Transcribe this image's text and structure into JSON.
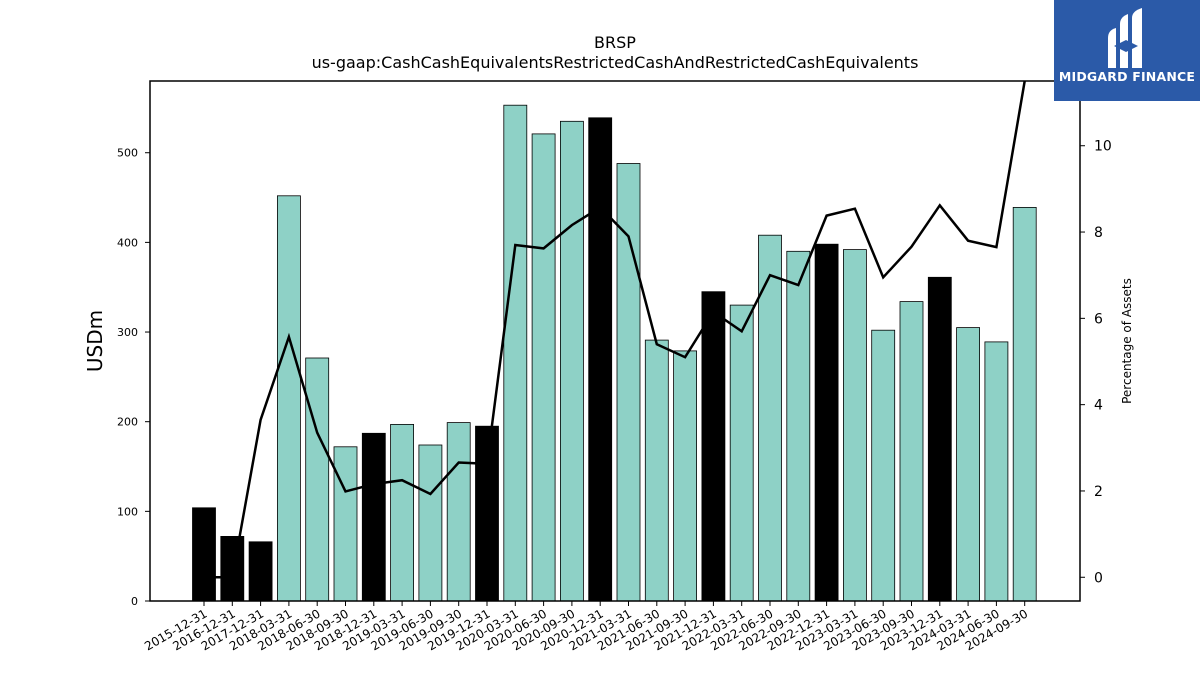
{
  "chart_data": {
    "type": "bar",
    "title": "BRSP",
    "subtitle": "us-gaap:CashCashEquivalentsRestrictedCashAndRestrictedCashEquivalents",
    "ylabel": "USDm",
    "y2label": "Percentage of Assets",
    "ylim": [
      0,
      580
    ],
    "y2lim": [
      -0.55,
      11.5
    ],
    "yticks": [
      "0",
      "100",
      "200",
      "300",
      "400",
      "500"
    ],
    "y2ticks": [
      "0",
      "2",
      "4",
      "6",
      "8",
      "10"
    ],
    "categories": [
      "2015-12-31",
      "2016-12-31",
      "2017-12-31",
      "2018-03-31",
      "2018-06-30",
      "2018-09-30",
      "2018-12-31",
      "2019-03-31",
      "2019-06-30",
      "2019-09-30",
      "2019-12-31",
      "2020-03-31",
      "2020-06-30",
      "2020-09-30",
      "2020-12-31",
      "2021-03-31",
      "2021-06-30",
      "2021-09-30",
      "2021-12-31",
      "2022-03-31",
      "2022-06-30",
      "2022-09-30",
      "2022-12-31",
      "2023-03-31",
      "2023-06-30",
      "2023-09-30",
      "2023-12-31",
      "2024-03-31",
      "2024-06-30",
      "2024-09-30"
    ],
    "series": [
      {
        "kind": "bar",
        "values": [
          104,
          72,
          66,
          452,
          271,
          172,
          187,
          197,
          174,
          199,
          195,
          553,
          521,
          535,
          539,
          488,
          291,
          279,
          345,
          330,
          408,
          390,
          398,
          392,
          302,
          334,
          361,
          305,
          289,
          439
        ],
        "highlight": [
          true,
          true,
          true,
          false,
          false,
          false,
          true,
          false,
          false,
          false,
          true,
          false,
          false,
          false,
          true,
          false,
          false,
          false,
          true,
          false,
          false,
          false,
          true,
          false,
          false,
          false,
          true,
          false,
          false,
          false
        ]
      },
      {
        "kind": "line",
        "axis": "right",
        "values": [
          0.0,
          0.0,
          3.65,
          5.57,
          3.35,
          1.99,
          2.16,
          2.25,
          1.93,
          2.66,
          2.63,
          7.7,
          7.62,
          8.16,
          8.57,
          7.9,
          5.4,
          5.1,
          6.15,
          5.7,
          7.0,
          6.77,
          8.38,
          8.54,
          6.95,
          7.66,
          8.62,
          7.8,
          7.65,
          11.5
        ]
      }
    ],
    "colors": {
      "bar": "#8ed1c6",
      "bar_highlight": "#000000",
      "line": "#000000"
    },
    "grid": false
  },
  "logo": {
    "text": "MIDGARD FINANCE",
    "background": "#2b5aa8"
  }
}
